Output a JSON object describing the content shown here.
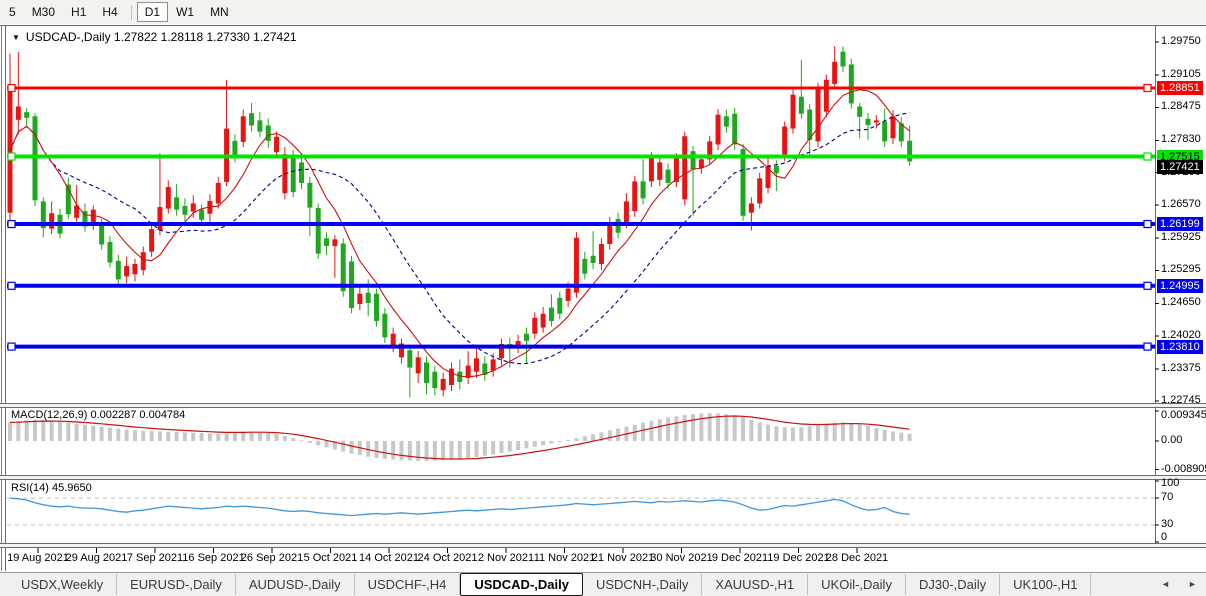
{
  "toolbar": {
    "buttons": [
      "5",
      "M30",
      "H1",
      "H4",
      "D1",
      "W1",
      "MN"
    ],
    "active": "D1",
    "divider_after": "H4"
  },
  "chart": {
    "symbol": "USDCAD-,Daily",
    "open": "1.27822",
    "high": "1.28118",
    "low": "1.27330",
    "close": "1.27421",
    "title": "USDCAD-,Daily  1.27822 1.28118 1.27330 1.27421",
    "expand_icon": "▼"
  },
  "colors": {
    "red_candle": "#E81414",
    "green_candle": "#1FA81F",
    "level_red": "#FF0000",
    "level_green": "#00E400",
    "level_blue": "#0000EE",
    "ma_fast": "#CC1111",
    "ma_slow": "#000088",
    "macd_hist": "#C8C8C8",
    "macd_signal": "#CC1111",
    "rsi_line": "#3E96DC",
    "badge_current_bg": "#000000"
  },
  "chart_data": {
    "type": "candlestick+indicators",
    "symbol": "USDCAD-,Daily",
    "price_axis_ticks": [
      "1.29750",
      "1.29105",
      "1.28475",
      "1.27830",
      "1.27200",
      "1.26570",
      "1.25925",
      "1.25295",
      "1.24650",
      "1.24020",
      "1.23375",
      "1.22745"
    ],
    "levels": [
      {
        "value": 1.28851,
        "label": "1.28851",
        "color": "#FF0000",
        "text": "#FFFFFF",
        "lw": 3
      },
      {
        "value": 1.27515,
        "label": "1.27515",
        "color": "#00E400",
        "text": "#000000",
        "lw": 4
      },
      {
        "value": 1.26199,
        "label": "1.26199",
        "color": "#0000EE",
        "text": "#FFFFFF",
        "lw": 4
      },
      {
        "value": 1.24995,
        "label": "1.24995",
        "color": "#0000EE",
        "text": "#FFFFFF",
        "lw": 4
      },
      {
        "value": 1.2381,
        "label": "1.23810",
        "color": "#0000EE",
        "text": "#FFFFFF",
        "lw": 4
      }
    ],
    "current_price": {
      "value": 1.27421,
      "label": "1.27421"
    },
    "candles": [
      [
        1.2884,
        1.2642,
        1.2952,
        1.262,
        "r"
      ],
      [
        1.2849,
        1.2823,
        1.2955,
        1.2795,
        "r"
      ],
      [
        1.2838,
        1.2827,
        1.2846,
        1.2812,
        "g"
      ],
      [
        1.283,
        1.2666,
        1.2836,
        1.2655,
        "g"
      ],
      [
        1.2664,
        1.2612,
        1.2672,
        1.2594,
        "g"
      ],
      [
        1.2641,
        1.2611,
        1.2664,
        1.26,
        "r"
      ],
      [
        1.2638,
        1.2601,
        1.265,
        1.2592,
        "g"
      ],
      [
        1.2697,
        1.2639,
        1.271,
        1.263,
        "g"
      ],
      [
        1.2656,
        1.2632,
        1.2696,
        1.262,
        "r"
      ],
      [
        1.2645,
        1.2615,
        1.266,
        1.2605,
        "g"
      ],
      [
        1.2648,
        1.262,
        1.2656,
        1.2608,
        "r"
      ],
      [
        1.2622,
        1.258,
        1.263,
        1.257,
        "g"
      ],
      [
        1.2585,
        1.2545,
        1.2596,
        1.2535,
        "g"
      ],
      [
        1.2548,
        1.2512,
        1.256,
        1.2502,
        "g"
      ],
      [
        1.2538,
        1.2518,
        1.2556,
        1.2504,
        "r"
      ],
      [
        1.2542,
        1.2522,
        1.2552,
        1.2508,
        "r"
      ],
      [
        1.2565,
        1.253,
        1.2576,
        1.252,
        "r"
      ],
      [
        1.261,
        1.2566,
        1.2622,
        1.2556,
        "r"
      ],
      [
        1.2653,
        1.2608,
        1.2758,
        1.2598,
        "r"
      ],
      [
        1.2692,
        1.265,
        1.2705,
        1.264,
        "r"
      ],
      [
        1.2672,
        1.2648,
        1.2698,
        1.2636,
        "g"
      ],
      [
        1.2655,
        1.2638,
        1.267,
        1.2626,
        "g"
      ],
      [
        1.266,
        1.2644,
        1.2676,
        1.2632,
        "r"
      ],
      [
        1.2648,
        1.2628,
        1.2658,
        1.2616,
        "g"
      ],
      [
        1.2665,
        1.264,
        1.2678,
        1.2624,
        "r"
      ],
      [
        1.27,
        1.266,
        1.2712,
        1.265,
        "r"
      ],
      [
        1.2806,
        1.2702,
        1.2901,
        1.2694,
        "r"
      ],
      [
        1.2782,
        1.2752,
        1.2795,
        1.274,
        "g"
      ],
      [
        1.283,
        1.278,
        1.2843,
        1.277,
        "r"
      ],
      [
        1.2836,
        1.2812,
        1.2856,
        1.28,
        "g"
      ],
      [
        1.2822,
        1.28,
        1.2838,
        1.279,
        "g"
      ],
      [
        1.2812,
        1.2782,
        1.2826,
        1.2768,
        "g"
      ],
      [
        1.279,
        1.276,
        1.28,
        1.2748,
        "r"
      ],
      [
        1.2756,
        1.268,
        1.277,
        1.2668,
        "r"
      ],
      [
        1.2752,
        1.2682,
        1.2764,
        1.2672,
        "g"
      ],
      [
        1.274,
        1.27,
        1.2752,
        1.2688,
        "g"
      ],
      [
        1.27,
        1.2652,
        1.2712,
        1.2596,
        "g"
      ],
      [
        1.2651,
        1.2562,
        1.266,
        1.2552,
        "g"
      ],
      [
        1.2592,
        1.2577,
        1.2604,
        1.256,
        "g"
      ],
      [
        1.259,
        1.2577,
        1.2598,
        1.2515,
        "r"
      ],
      [
        1.2582,
        1.2489,
        1.2592,
        1.2478,
        "g"
      ],
      [
        1.2547,
        1.2456,
        1.2558,
        1.2446,
        "g"
      ],
      [
        1.2484,
        1.2464,
        1.25,
        1.2452,
        "r"
      ],
      [
        1.2486,
        1.2466,
        1.2512,
        1.244,
        "g"
      ],
      [
        1.2484,
        1.2431,
        1.2494,
        1.242,
        "g"
      ],
      [
        1.2445,
        1.2399,
        1.2456,
        1.2388,
        "g"
      ],
      [
        1.2406,
        1.2383,
        1.2418,
        1.237,
        "r"
      ],
      [
        1.2387,
        1.236,
        1.2397,
        1.2348,
        "r"
      ],
      [
        1.2374,
        1.234,
        1.2384,
        1.2282,
        "g"
      ],
      [
        1.236,
        1.2329,
        1.2372,
        1.231,
        "r"
      ],
      [
        1.235,
        1.231,
        1.2362,
        1.2288,
        "g"
      ],
      [
        1.2332,
        1.23,
        1.2344,
        1.2286,
        "g"
      ],
      [
        1.2318,
        1.2296,
        1.233,
        1.2284,
        "r"
      ],
      [
        1.2338,
        1.2306,
        1.235,
        1.2294,
        "r"
      ],
      [
        1.2332,
        1.2312,
        1.2356,
        1.2298,
        "g"
      ],
      [
        1.2344,
        1.232,
        1.2372,
        1.2308,
        "r"
      ],
      [
        1.2358,
        1.2332,
        1.238,
        1.232,
        "r"
      ],
      [
        1.2348,
        1.2326,
        1.2362,
        1.2314,
        "g"
      ],
      [
        1.2356,
        1.2334,
        1.2368,
        1.2322,
        "r"
      ],
      [
        1.2386,
        1.2358,
        1.2396,
        1.2344,
        "r"
      ],
      [
        1.2386,
        1.2377,
        1.2398,
        1.234,
        "g"
      ],
      [
        1.2392,
        1.2379,
        1.2404,
        1.2368,
        "r"
      ],
      [
        1.2406,
        1.2392,
        1.2418,
        1.2347,
        "g"
      ],
      [
        1.2437,
        1.2406,
        1.2448,
        1.2396,
        "r"
      ],
      [
        1.2445,
        1.2418,
        1.2458,
        1.2408,
        "r"
      ],
      [
        1.2457,
        1.2431,
        1.2483,
        1.242,
        "g"
      ],
      [
        1.2476,
        1.2445,
        1.2488,
        1.2434,
        "g"
      ],
      [
        1.2494,
        1.247,
        1.2506,
        1.2458,
        "r"
      ],
      [
        1.2593,
        1.2486,
        1.2604,
        1.2476,
        "r"
      ],
      [
        1.2552,
        1.2523,
        1.2566,
        1.2512,
        "g"
      ],
      [
        1.2558,
        1.2544,
        1.2606,
        1.2532,
        "g"
      ],
      [
        1.2581,
        1.2542,
        1.2592,
        1.253,
        "r"
      ],
      [
        1.2622,
        1.2581,
        1.2634,
        1.257,
        "r"
      ],
      [
        1.263,
        1.2603,
        1.2642,
        1.2592,
        "g"
      ],
      [
        1.2664,
        1.2622,
        1.268,
        1.2612,
        "r"
      ],
      [
        1.2703,
        1.2645,
        1.2714,
        1.2634,
        "r"
      ],
      [
        1.2703,
        1.267,
        1.2746,
        1.2658,
        "g"
      ],
      [
        1.2748,
        1.2703,
        1.276,
        1.2692,
        "r"
      ],
      [
        1.274,
        1.2706,
        1.2752,
        1.2694,
        "r"
      ],
      [
        1.2726,
        1.27,
        1.2738,
        1.2688,
        "g"
      ],
      [
        1.2748,
        1.2702,
        1.2758,
        1.2692,
        "r"
      ],
      [
        1.2791,
        1.2668,
        1.28,
        1.2656,
        "r"
      ],
      [
        1.2762,
        1.2727,
        1.2772,
        1.2636,
        "g"
      ],
      [
        1.2746,
        1.2729,
        1.2756,
        1.2718,
        "r"
      ],
      [
        1.2781,
        1.2746,
        1.2792,
        1.2736,
        "r"
      ],
      [
        1.2833,
        1.2775,
        1.2844,
        1.2764,
        "r"
      ],
      [
        1.283,
        1.281,
        1.2843,
        1.2798,
        "g"
      ],
      [
        1.2835,
        1.2775,
        1.2846,
        1.2764,
        "g"
      ],
      [
        1.2766,
        1.2636,
        1.2776,
        1.2626,
        "g"
      ],
      [
        1.266,
        1.2642,
        1.2672,
        1.2607,
        "r"
      ],
      [
        1.2709,
        1.266,
        1.272,
        1.265,
        "r"
      ],
      [
        1.2733,
        1.269,
        1.2748,
        1.268,
        "r"
      ],
      [
        1.2733,
        1.2719,
        1.2744,
        1.2684,
        "g"
      ],
      [
        1.281,
        1.2752,
        1.282,
        1.2742,
        "r"
      ],
      [
        1.2872,
        1.2806,
        1.2884,
        1.2796,
        "r"
      ],
      [
        1.2868,
        1.2835,
        1.294,
        1.2825,
        "g"
      ],
      [
        1.2843,
        1.2784,
        1.2854,
        1.2755,
        "g"
      ],
      [
        1.2884,
        1.2781,
        1.2895,
        1.277,
        "r"
      ],
      [
        1.2901,
        1.2839,
        1.2911,
        1.2828,
        "r"
      ],
      [
        1.2936,
        1.2893,
        1.2967,
        1.2884,
        "r"
      ],
      [
        1.2956,
        1.2927,
        1.2966,
        1.2916,
        "g"
      ],
      [
        1.2931,
        1.2855,
        1.2942,
        1.2845,
        "g"
      ],
      [
        1.2849,
        1.2829,
        1.2856,
        1.2787,
        "g"
      ],
      [
        1.2825,
        1.2813,
        1.2836,
        1.2784,
        "g"
      ],
      [
        1.2822,
        1.2818,
        1.2832,
        1.2806,
        "r"
      ],
      [
        1.282,
        1.2781,
        1.2845,
        1.277,
        "g"
      ],
      [
        1.283,
        1.2787,
        1.2842,
        1.2776,
        "r"
      ],
      [
        1.2816,
        1.2781,
        1.2828,
        1.277,
        "g"
      ],
      [
        1.27822,
        1.27421,
        1.28118,
        1.2733,
        "g"
      ]
    ],
    "macd": {
      "label": "MACD(12,26,9) 0.002287 0.004784",
      "axis_labels": [
        "0.009345",
        "0.00",
        "-0.008905"
      ],
      "axis_values": [
        0.009345,
        0,
        -0.008905
      ],
      "values": [
        0.0058,
        0.0062,
        0.0065,
        0.0066,
        0.0065,
        0.0063,
        0.006,
        0.0057,
        0.0054,
        0.0051,
        0.0048,
        0.0045,
        0.0042,
        0.0039,
        0.0036,
        0.0034,
        0.0032,
        0.0031,
        0.003,
        0.0029,
        0.0028,
        0.0027,
        0.0026,
        0.0025,
        0.0024,
        0.0023,
        0.0024,
        0.0026,
        0.0028,
        0.0029,
        0.0028,
        0.0026,
        0.0022,
        0.0016,
        0.0009,
        0.0002,
        -0.0006,
        -0.0013,
        -0.002,
        -0.0027,
        -0.0033,
        -0.0039,
        -0.0044,
        -0.0049,
        -0.0053,
        -0.0056,
        -0.0058,
        -0.006,
        -0.0061,
        -0.0062,
        -0.0062,
        -0.0061,
        -0.006,
        -0.0058,
        -0.0056,
        -0.0053,
        -0.005,
        -0.0046,
        -0.0042,
        -0.0038,
        -0.0033,
        -0.0028,
        -0.0023,
        -0.0018,
        -0.0013,
        -0.0008,
        -0.0003,
        0.0003,
        0.0009,
        0.0015,
        0.0021,
        0.0027,
        0.0033,
        0.0039,
        0.0045,
        0.0051,
        0.0057,
        0.0063,
        0.0068,
        0.0073,
        0.0077,
        0.0081,
        0.0084,
        0.0086,
        0.0087,
        0.0086,
        0.0084,
        0.008,
        0.0074,
        0.0066,
        0.0058,
        0.0051,
        0.0046,
        0.0043,
        0.0042,
        0.0043,
        0.0046,
        0.005,
        0.0054,
        0.0057,
        0.0058,
        0.0056,
        0.0052,
        0.0047,
        0.0041,
        0.0035,
        0.003,
        0.0026,
        0.002287
      ]
    },
    "rsi": {
      "label": "RSI(14) 45.9650",
      "axis_labels": [
        "100",
        "70",
        "30",
        "0"
      ],
      "axis_values": [
        100,
        70,
        30,
        0
      ],
      "overbought": 70,
      "oversold": 30,
      "values": [
        70,
        69,
        67,
        63,
        60,
        58,
        57,
        58,
        56,
        55,
        55,
        54,
        52,
        50,
        49,
        51,
        52,
        54,
        56,
        58,
        57,
        56,
        55,
        54,
        55,
        56,
        58,
        57,
        58,
        57,
        56,
        55,
        53,
        51,
        50,
        51,
        50,
        48,
        47,
        46,
        45,
        44,
        45,
        46,
        47,
        46,
        47,
        48,
        47,
        46,
        47,
        48,
        49,
        50,
        51,
        52,
        51,
        52,
        53,
        54,
        53,
        54,
        55,
        56,
        57,
        58,
        59,
        60,
        62,
        61,
        60,
        61,
        62,
        63,
        64,
        65,
        64,
        63,
        65,
        64,
        65,
        66,
        65,
        64,
        66,
        67,
        66,
        64,
        60,
        55,
        52,
        53,
        56,
        59,
        58,
        60,
        62,
        64,
        66,
        68,
        66,
        60,
        55,
        52,
        53,
        56,
        50,
        47,
        45.965
      ]
    },
    "x_dates": [
      "19 Aug 2021",
      "29 Aug 2021",
      "7 Sep 2021",
      "16 Sep 2021",
      "26 Sep 2021",
      "5 Oct 2021",
      "14 Oct 2021",
      "24 Oct 2021",
      "2 Nov 2021",
      "11 Nov 2021",
      "21 Nov 2021",
      "30 Nov 2021",
      "9 Dec 2021",
      "19 Dec 2021",
      "28 Dec 2021"
    ]
  },
  "tabs": {
    "items": [
      "USDX,Weekly",
      "EURUSD-,Daily",
      "AUDUSD-,Daily",
      "USDCHF-,H4",
      "USDCAD-,Daily",
      "USDCNH-,Daily",
      "XAUUSD-,H1",
      "UKOil-,Daily",
      "DJ30-,Daily",
      "UK100-,H1"
    ],
    "active": "USDCAD-,Daily",
    "scroll_left_icon": "◄",
    "scroll_right_icon": "►"
  }
}
